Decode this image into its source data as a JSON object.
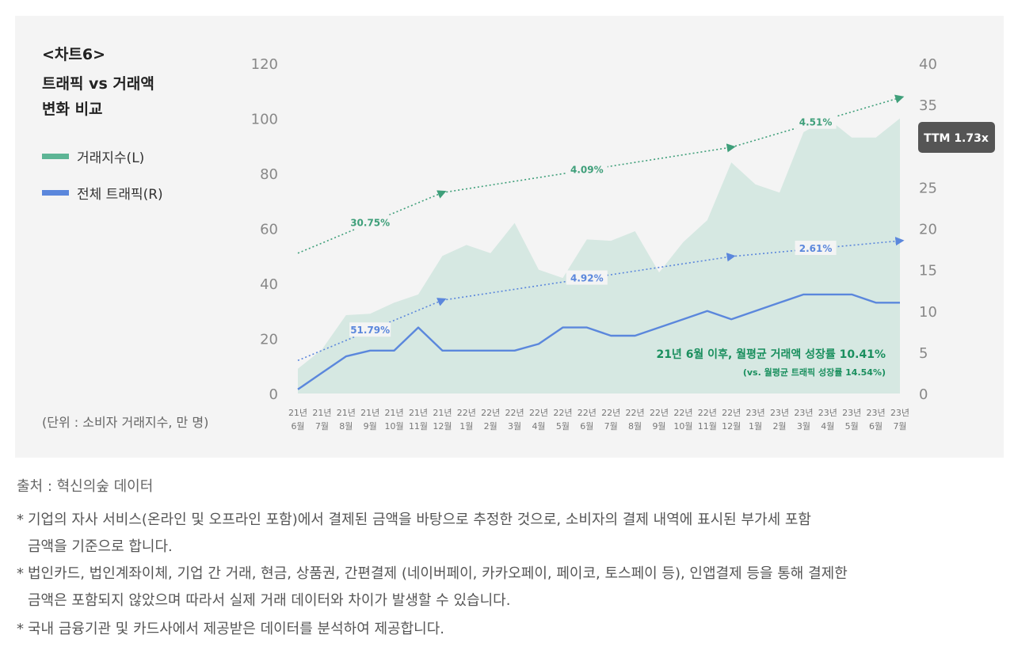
{
  "chart_label": "<차트6>",
  "chart_title_line1": "트래픽 vs 거래액",
  "chart_title_line2": "변화 비교",
  "legend": [
    {
      "label": "거래지수(L)",
      "color": "#5db595"
    },
    {
      "label": "전체 트래픽(R)",
      "color": "#5b87dc"
    }
  ],
  "unit_note": "(단위 : 소비자 거래지수, 만 명)",
  "source": "출처 : 혁신의숲 데이터",
  "notes": [
    {
      "star": "*",
      "line1": "기업의 자사 서비스(온라인 및 오프라인 포함)에서 결제된 금액을 바탕으로 추정한 것으로, 소비자의 결제 내역에 표시된 부가세 포함",
      "line2": "금액을 기준으로 합니다."
    },
    {
      "star": "*",
      "line1": "법인카드, 법인계좌이체, 기업 간 거래, 현금, 상품권, 간편결제 (네이버페이, 카카오페이, 페이코, 토스페이 등), 인앱결제 등을 통해 결제한",
      "line2": "금액은 포함되지 않았으며 따라서 실제 거래 데이터와 차이가 발생할 수 있습니다."
    },
    {
      "star": "*",
      "line1": "국내 금융기관 및 카드사에서 제공받은 데이터를 분석하여 제공합니다.",
      "line2": ""
    }
  ],
  "chart_data": {
    "type": "area",
    "categories": [
      [
        "21년",
        "6월"
      ],
      [
        "21년",
        "7월"
      ],
      [
        "21년",
        "8월"
      ],
      [
        "21년",
        "9월"
      ],
      [
        "21년",
        "10월"
      ],
      [
        "21년",
        "11월"
      ],
      [
        "21년",
        "12월"
      ],
      [
        "22년",
        "1월"
      ],
      [
        "22년",
        "2월"
      ],
      [
        "22년",
        "3월"
      ],
      [
        "22년",
        "4월"
      ],
      [
        "22년",
        "5월"
      ],
      [
        "22년",
        "6월"
      ],
      [
        "22년",
        "7월"
      ],
      [
        "22년",
        "8월"
      ],
      [
        "22년",
        "9월"
      ],
      [
        "22년",
        "10월"
      ],
      [
        "22년",
        "11월"
      ],
      [
        "22년",
        "12월"
      ],
      [
        "23년",
        "1월"
      ],
      [
        "23년",
        "2월"
      ],
      [
        "23년",
        "3월"
      ],
      [
        "23년",
        "4월"
      ],
      [
        "23년",
        "5월"
      ],
      [
        "23년",
        "6월"
      ],
      [
        "23년",
        "7월"
      ]
    ],
    "left_axis": {
      "min": 0,
      "max": 120,
      "ticks": [
        0,
        20,
        40,
        60,
        80,
        100,
        120
      ]
    },
    "right_axis": {
      "min": 0,
      "max": 40,
      "ticks": [
        0,
        5,
        10,
        15,
        20,
        25,
        30,
        35,
        40
      ]
    },
    "series": [
      {
        "name": "거래지수(L)",
        "type": "area",
        "axis": "left",
        "color": "#d6e8e2",
        "values": [
          9,
          16,
          28.5,
          29,
          33,
          36,
          50,
          54,
          51,
          62,
          45,
          42,
          56,
          55.5,
          59,
          44,
          55,
          63,
          84,
          76,
          73,
          95,
          100,
          93,
          93,
          100
        ]
      },
      {
        "name": "전체 트래픽(R)",
        "type": "line",
        "axis": "right",
        "color": "#5b87dc",
        "values": [
          0.5,
          2.5,
          4.5,
          5.2,
          5.2,
          8,
          5.2,
          5.2,
          5.2,
          5.2,
          6,
          8,
          8,
          7,
          7,
          8,
          9,
          10,
          9,
          10,
          11,
          12,
          12,
          12,
          11,
          11
        ]
      }
    ],
    "trend_arrows": [
      {
        "series": "거래지수(L)",
        "color": "#3f9f7a",
        "axis": "left",
        "points": [
          [
            0,
            51
          ],
          [
            6,
            73
          ],
          [
            18,
            89.5
          ],
          [
            25,
            107.5
          ]
        ],
        "labels": [
          {
            "text": "30.75%",
            "at": 3
          },
          {
            "text": "4.09%",
            "at": 12
          },
          {
            "text": "4.51%",
            "at": 21.5
          }
        ]
      },
      {
        "series": "전체 트래픽(R)",
        "color": "#5b87dc",
        "axis": "right",
        "points": [
          [
            0,
            4
          ],
          [
            6,
            11.3
          ],
          [
            18,
            16.6
          ],
          [
            25,
            18.5
          ]
        ],
        "labels": [
          {
            "text": "51.79%",
            "at": 3
          },
          {
            "text": "4.92%",
            "at": 12
          },
          {
            "text": "2.61%",
            "at": 21.5
          }
        ]
      }
    ],
    "annotations": {
      "growth_text": "21년 6월 이후, 월평균 거래액 성장률 10.41%",
      "growth_sub": "(vs. 월평균 트래픽 성장률 14.54%)",
      "ttm_badge": "TTM 1.73x"
    }
  }
}
